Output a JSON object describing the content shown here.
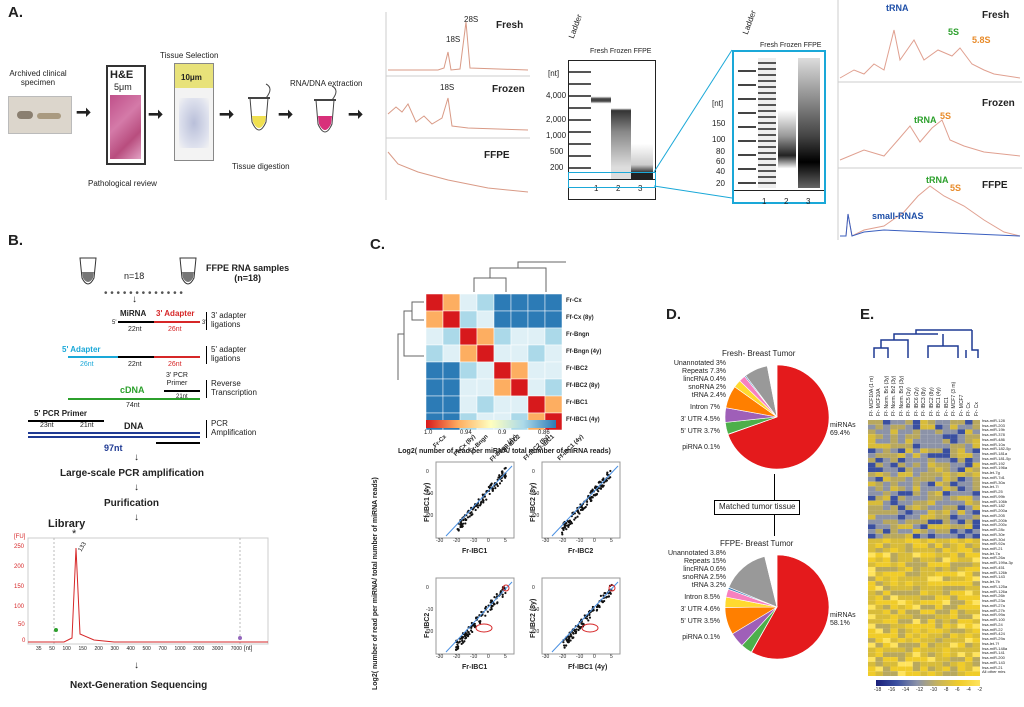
{
  "panels": {
    "a": "A.",
    "b": "B.",
    "c": "C.",
    "d": "D.",
    "e": "E."
  },
  "a": {
    "specimen": [
      "Archived clinical",
      "specimen"
    ],
    "he_title": "H&E",
    "he_um": "5μm",
    "tissue_sel": "Tissue Selection",
    "tissue_um": "10μm",
    "path_review": "Pathological review",
    "digestion": "Tissue digestion",
    "extraction": "RNA/DNA extraction",
    "trace_fresh": "Fresh",
    "trace_frozen": "Frozen",
    "trace_ffpe": "FFPE",
    "peak_18s": "18S",
    "peak_28s": "28S",
    "peak_18s_b": "18S",
    "gel1": {
      "ladder": "Ladder",
      "header": "Fresh Frozen FFPE",
      "unit": "[nt]",
      "ticks": [
        "4,000",
        "2,000",
        "1,000",
        "500",
        "200"
      ],
      "lanes": [
        "1",
        "2",
        "3"
      ]
    },
    "gel2": {
      "ladder": "Ladder",
      "header": "Fresh Frozen FFPE",
      "unit": "[nt]",
      "ticks": [
        "150",
        "100",
        "80",
        "60",
        "40",
        "20"
      ],
      "lanes": [
        "1",
        "2",
        "3"
      ]
    },
    "small_fresh": {
      "title": "Fresh",
      "trna": "tRNA",
      "s5": "5S",
      "s58": "5.8S"
    },
    "small_frozen": {
      "title": "Frozen",
      "trna": "tRNA",
      "s5": "5S"
    },
    "small_ffpe": {
      "title": "FFPE",
      "trna": "tRNA",
      "s5": "5S",
      "small": "small-RNAS"
    }
  },
  "b": {
    "n": "n=18",
    "samples": [
      "FFPE RNA samples",
      "(n=18)"
    ],
    "mirna": "MiRNA",
    "adapter3": "3' Adapter",
    "nt22": "22nt",
    "nt26": "26nt",
    "adapter5": "5' Adapter",
    "nt26b": "26nt",
    "nt22b": "22nt",
    "nt26c": "26nt",
    "primer3": [
      "3' PCR",
      "Primer"
    ],
    "nt21": "21nt",
    "cdna": "cDNA",
    "nt74": "74nt",
    "primer5": "5' PCR Primer",
    "nt23": "23nt",
    "nt21b": "21nt",
    "dna": "DNA",
    "nt97": "97nt",
    "step1": [
      "3' adapter",
      "ligations"
    ],
    "step2": [
      "5' adapter",
      "ligations"
    ],
    "step3": [
      "Reverse",
      "Transcription"
    ],
    "step4": [
      "PCR",
      "Amplification"
    ],
    "largescale": "Large-scale PCR amplification",
    "purification": "Purification",
    "library": "Library",
    "ngs": "Next-Generation Sequencing",
    "trace": {
      "yunit": "[FU]",
      "xunit": "[nt]",
      "yticks": [
        "250",
        "200",
        "150",
        "100",
        "50",
        "0"
      ],
      "xticks": [
        "35",
        "50",
        "100",
        "150",
        "200",
        "300",
        "400",
        "500",
        "700",
        "1000",
        "2000",
        "3000",
        "7000"
      ],
      "peak_label": "133",
      "marker": "*"
    }
  },
  "c": {
    "row_labels": [
      "Fr-Cx",
      "Ff-Cx (8y)",
      "Fr-Bngn",
      "Ff-Bngn (4y)",
      "Fr-IBC2",
      "Ff-IBC2 (8y)",
      "Fr-IBC1",
      "Ff-IBC1 (4y)"
    ],
    "col_labels": [
      "Fr-Cx",
      "Ff-Cx (8y)",
      "Fr-Bngn",
      "Ff-Bngn (4y)",
      "Fr-IBC2",
      "Ff-IBC2 (8y)",
      "Fr-IBC1",
      "Ff-IBC1 (4y)"
    ],
    "colorbar": [
      "1.0",
      "0.94",
      "0.9",
      "0.86"
    ],
    "scatter_title": "Log2( number of read per miRNA/ total number of miRNA reads)",
    "scatter_ylabel": "Log2( number of read per miRNA/ total number of miRNA reads)",
    "plots": [
      {
        "x": "Fr-IBC1",
        "y": "Ff-IBC1 (4y)"
      },
      {
        "x": "Fr-IBC2",
        "y": "Ff-IBC2 (8y)"
      },
      {
        "x": "Fr-IBC1",
        "y": "Fr-IBC2"
      },
      {
        "x": "Ff-IBC1 (4y)",
        "y": "Ff-IBC2 (8y)"
      }
    ],
    "xticks": [
      "-30",
      "-20",
      "-10",
      "0",
      "5"
    ],
    "yticks": [
      "0",
      "-10",
      "-20"
    ]
  },
  "d": {
    "title1": "Fresh- Breast Tumor",
    "title2": "FFPE- Breast Tumor",
    "matched": "Matched tumor tissue",
    "pie1": [
      {
        "label": "miRNAs 69.4%",
        "v": 69.4,
        "c": "#e41a1c"
      },
      {
        "label": "piRNA 0.1%",
        "v": 0.1,
        "c": "#984ea3"
      },
      {
        "label": "5' UTR 3.7%",
        "v": 3.7,
        "c": "#4daf4a"
      },
      {
        "label": "3' UTR 4.5%",
        "v": 4.5,
        "c": "#9f5fb8"
      },
      {
        "label": "Intron 7%",
        "v": 7,
        "c": "#ff7f00"
      },
      {
        "label": "tRNA 2.4%",
        "v": 2.4,
        "c": "#ffd92f"
      },
      {
        "label": "snoRNA 2%",
        "v": 2,
        "c": "#f781bf"
      },
      {
        "label": "lincRNA 0.4%",
        "v": 0.4,
        "c": "#377eb8"
      },
      {
        "label": "Repeats 7.3%",
        "v": 7.3,
        "c": "#999999"
      },
      {
        "label": "Unannotated 3%",
        "v": 3,
        "c": "#ffffff"
      }
    ],
    "pie2": [
      {
        "label": "miRNAs 58.1%",
        "v": 58.1,
        "c": "#e41a1c"
      },
      {
        "label": "piRNA 0.1%",
        "v": 0.1,
        "c": "#984ea3"
      },
      {
        "label": "5' UTR 3.5%",
        "v": 3.5,
        "c": "#4daf4a"
      },
      {
        "label": "3' UTR 4.6%",
        "v": 4.6,
        "c": "#9f5fb8"
      },
      {
        "label": "Intron 8.5%",
        "v": 8.5,
        "c": "#ff7f00"
      },
      {
        "label": "tRNA 3.2%",
        "v": 3.2,
        "c": "#ffd92f"
      },
      {
        "label": "snoRNA 2.5%",
        "v": 2.5,
        "c": "#f781bf"
      },
      {
        "label": "lincRNA 0.6%",
        "v": 0.6,
        "c": "#377eb8"
      },
      {
        "label": "Repeats 15%",
        "v": 15,
        "c": "#999999"
      },
      {
        "label": "Unannotated 3.8%",
        "v": 3.8,
        "c": "#ffffff"
      }
    ]
  },
  "e": {
    "cols": [
      "Ff- MCF10A (1 m)",
      "Fr- MCF10A",
      "Ff- Norm. Br1 (3y)",
      "Ff- Norm. Br2 (3y)",
      "Ff- Norm. Br3 (3y)",
      "Ff- IBC5 (1y)",
      "Ff- IBC6 (2y)",
      "Ff- IBC3 (8y)",
      "Ff- IBC2 (8y)",
      "Ff- IBC1 (4y)",
      "Fr- IBC1",
      "Ff- MCF7 (3 m)",
      "Fr- MCF7",
      "Ff- Cx",
      "Fr- Cx"
    ],
    "rows": [
      "hsa-miR-128",
      "hsa-miR-203",
      "hsa-miR-19b",
      "hsa-miR-378",
      "hsa-miR-486",
      "hsa-miR-10a",
      "hsa-miR-182-5p",
      "hsa-miR-181a",
      "hsa-miR-181-5p",
      "hsa-miR-192",
      "hsa-miR-196a",
      "hsa-let-7g",
      "hsa-miR-7d1",
      "hsa-miR-30a",
      "hsa-let-7i",
      "hsa-miR-25",
      "hsa-miR-99b",
      "hsa-miR-106b",
      "hsa-miR-182",
      "hsa-miR-200a",
      "hsa-miR-205",
      "hsa-miR-200b",
      "hsa-miR-200c",
      "hsa-miR-28c",
      "hsa-miR-30e",
      "hsa-miR-30d",
      "hsa-miR-92a",
      "hsa-miR-21",
      "hsa-let-7a",
      "hsa-miR-26a",
      "hsa-miR-199a-3p",
      "hsa-miR-451",
      "hsa-miR-126b",
      "hsa-miR-143",
      "hsa-let-7b",
      "hsa-miR-125a",
      "hsa-miR-126a",
      "hsa-miR-26b",
      "hsa-miR-23a",
      "hsa-miR-27a",
      "hsa-miR-27b",
      "hsa-miR-99a",
      "hsa-miR-100",
      "hsa-miR-24",
      "hsa-miR-22",
      "hsa-miR-424",
      "hsa-miR-29a",
      "hsa-let-7f",
      "hsa-miR-148a",
      "hsa-miR-141",
      "hsa-miR-200",
      "hsa-miR-143",
      "hsa-miR-21",
      "All other mirs"
    ],
    "colorbar": [
      "-18",
      "-16",
      "-14",
      "-12",
      "-10",
      "-8",
      "-6",
      "-4",
      "-2"
    ]
  }
}
